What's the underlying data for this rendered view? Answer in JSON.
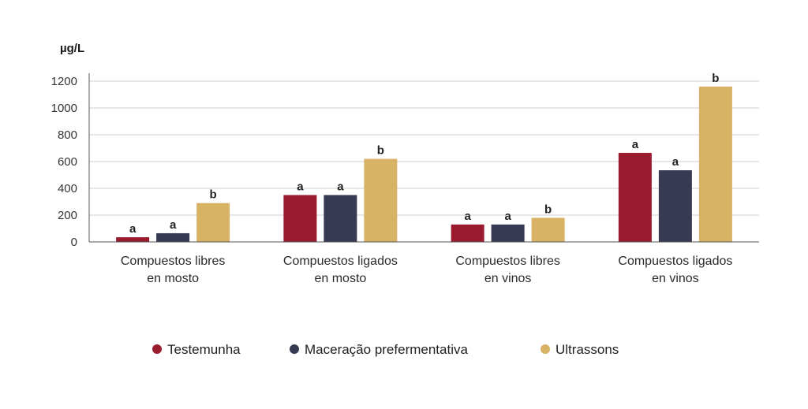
{
  "chart_data": {
    "type": "bar",
    "ylabel": "µg/L",
    "ylim": [
      0,
      1200
    ],
    "yticks": [
      0,
      200,
      400,
      600,
      800,
      1000,
      1200
    ],
    "grid": true,
    "legend_position": "bottom",
    "categories": [
      [
        "Compuestos libres",
        "en mosto"
      ],
      [
        "Compuestos ligados",
        "en mosto"
      ],
      [
        "Compuestos libres",
        "en vinos"
      ],
      [
        "Compuestos ligados",
        "en vinos"
      ]
    ],
    "series": [
      {
        "name": "Testemunha",
        "color": "#9b1b2e",
        "values": [
          35,
          350,
          130,
          665
        ],
        "labels": [
          "a",
          "a",
          "a",
          "a"
        ]
      },
      {
        "name": "Maceração prefermentativa",
        "color": "#363a52",
        "values": [
          65,
          350,
          130,
          535
        ],
        "labels": [
          "a",
          "a",
          "a",
          "a"
        ]
      },
      {
        "name": "Ultrassons",
        "color": "#d8b265",
        "values": [
          290,
          620,
          180,
          1160
        ],
        "labels": [
          "b",
          "b",
          "b",
          "b"
        ]
      }
    ]
  }
}
